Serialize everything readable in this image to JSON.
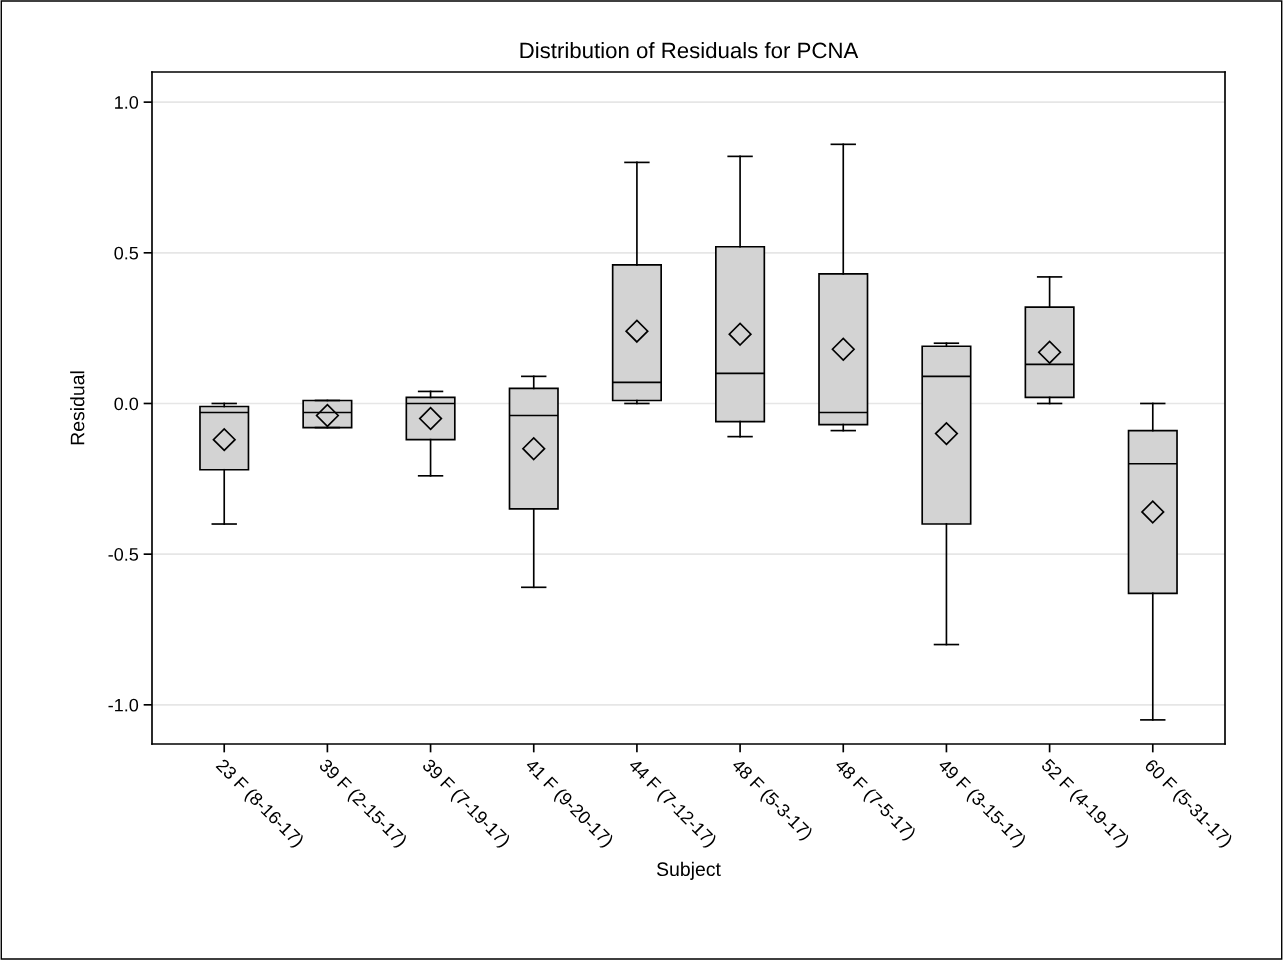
{
  "chart_data": {
    "type": "box",
    "title": "Distribution of Residuals for PCNA",
    "xlabel": "Subject",
    "ylabel": "Residual",
    "categories": [
      "23 F (8-16-17)",
      "39 F (2-15-17)",
      "39 F (7-19-17)",
      "41 F (9-20-17)",
      "44 F (7-12-17)",
      "48 F (5-3-17)",
      "48 F (7-5-17)",
      "49 F (3-15-17)",
      "52 F (4-19-17)",
      "60 F (5-31-17)"
    ],
    "boxes": [
      {
        "low": -0.4,
        "q1": -0.22,
        "median": -0.03,
        "q3": -0.01,
        "high": 0.0,
        "mean": -0.12
      },
      {
        "low": -0.08,
        "q1": -0.08,
        "median": -0.03,
        "q3": 0.01,
        "high": 0.01,
        "mean": -0.04
      },
      {
        "low": -0.24,
        "q1": -0.12,
        "median": 0.0,
        "q3": 0.02,
        "high": 0.04,
        "mean": -0.05
      },
      {
        "low": -0.61,
        "q1": -0.35,
        "median": -0.04,
        "q3": 0.05,
        "high": 0.09,
        "mean": -0.15
      },
      {
        "low": 0.0,
        "q1": 0.01,
        "median": 0.07,
        "q3": 0.46,
        "high": 0.8,
        "mean": 0.24
      },
      {
        "low": -0.11,
        "q1": -0.06,
        "median": 0.1,
        "q3": 0.52,
        "high": 0.82,
        "mean": 0.23
      },
      {
        "low": -0.09,
        "q1": -0.07,
        "median": -0.03,
        "q3": 0.43,
        "high": 0.86,
        "mean": 0.18
      },
      {
        "low": -0.8,
        "q1": -0.4,
        "median": 0.09,
        "q3": 0.19,
        "high": 0.2,
        "mean": -0.1
      },
      {
        "low": 0.0,
        "q1": 0.02,
        "median": 0.13,
        "q3": 0.32,
        "high": 0.42,
        "mean": 0.17
      },
      {
        "low": -1.05,
        "q1": -0.63,
        "median": -0.2,
        "q3": -0.09,
        "high": 0.0,
        "mean": -0.36
      }
    ],
    "color": "#d3d3d3",
    "marker": "diamond",
    "ylim": [
      -1.13,
      1.1
    ],
    "yticks": [
      {
        "value": -1.0,
        "label": "-1.0"
      },
      {
        "value": -0.5,
        "label": "-0.5"
      },
      {
        "value": 0.0,
        "label": "0.0"
      },
      {
        "value": 0.5,
        "label": "0.5"
      },
      {
        "value": 1.0,
        "label": "1.0"
      }
    ],
    "grid": "y"
  }
}
